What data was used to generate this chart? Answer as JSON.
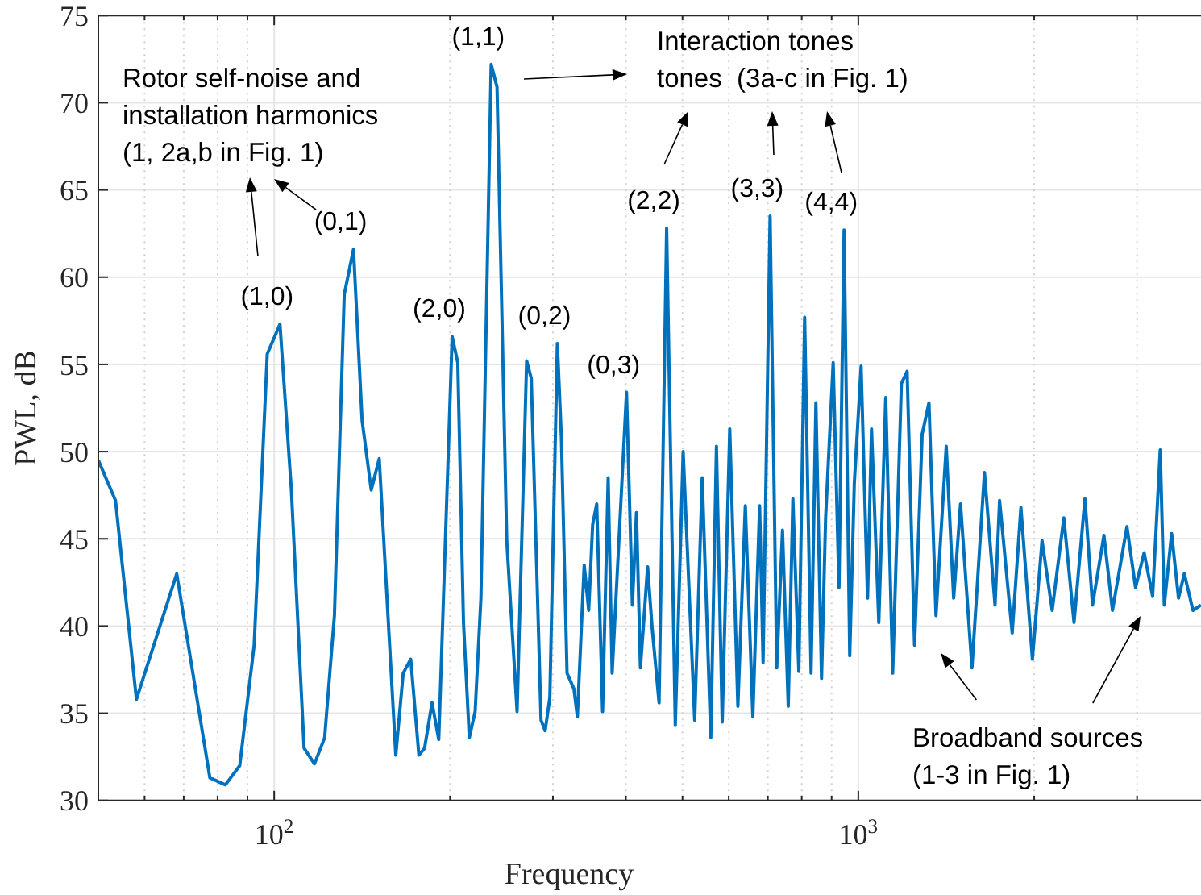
{
  "chart_data": {
    "type": "line",
    "xlabel": "Frequency",
    "ylabel": "PWL, dB",
    "log": "x",
    "grid": true,
    "xlim": [
      50,
      3860
    ],
    "ylim": [
      30,
      75
    ],
    "xticks": [
      {
        "value": 60,
        "label": null
      },
      {
        "value": 70,
        "label": null
      },
      {
        "value": 80,
        "label": null
      },
      {
        "value": 90,
        "label": null
      },
      {
        "value": 100,
        "label": "10$^{2}$"
      },
      {
        "value": 200,
        "label": null
      },
      {
        "value": 300,
        "label": null
      },
      {
        "value": 400,
        "label": null
      },
      {
        "value": 500,
        "label": null
      },
      {
        "value": 600,
        "label": null
      },
      {
        "value": 700,
        "label": null
      },
      {
        "value": 800,
        "label": null
      },
      {
        "value": 900,
        "label": null
      },
      {
        "value": 1000,
        "label": "10$^{3}$"
      },
      {
        "value": 2000,
        "label": null
      },
      {
        "value": 3000,
        "label": null
      }
    ],
    "yticks": [
      30,
      35,
      40,
      45,
      50,
      55,
      60,
      65,
      70,
      75
    ],
    "x": [
      50,
      53.5,
      58.1,
      68.1,
      77.6,
      82.5,
      87.3,
      92.4,
      97.3,
      102.3,
      107,
      112.5,
      117.2,
      122,
      126.8,
      131.8,
      136.7,
      141.4,
      146.6,
      151.3,
      157.2,
      161.5,
      166.3,
      171.3,
      176.9,
      180.9,
      186.3,
      191.3,
      201.7,
      206.2,
      210.9,
      215.8,
      220.8,
      225.9,
      235.2,
      240.7,
      250.1,
      260.5,
      270.5,
      275.5,
      286.3,
      291,
      296.4,
      305.3,
      310.2,
      317.2,
      325.9,
      330.4,
      339.4,
      345.5,
      350.9,
      356.6,
      364.9,
      373,
      378.9,
      401,
      410.4,
      417,
      423.6,
      435.8,
      443.6,
      455.9,
      469.7,
      486,
      501.3,
      524.6,
      540.4,
      559,
      571.6,
      584.8,
      602.4,
      622,
      640.5,
      659.8,
      677.7,
      687,
      706.2,
      725,
      741.6,
      758.6,
      772.6,
      790.9,
      809.3,
      830,
      846,
      865,
      879,
      905.6,
      926.6,
      945.3,
      966.7,
      984.3,
      1011,
      1037,
      1053.4,
      1084,
      1114,
      1145,
      1185,
      1212,
      1248,
      1286,
      1321,
      1358,
      1414,
      1456,
      1496,
      1565,
      1644,
      1714,
      1745,
      1834,
      1898,
      1986,
      2063,
      2147,
      2248,
      2340,
      2443,
      2517,
      2633,
      2723,
      2883,
      2982,
      3085,
      3190,
      3287,
      3340,
      3438,
      3533,
      3614,
      3740,
      3860
    ],
    "series": [
      {
        "color": "#0072bd",
        "values": [
          49.5,
          47.2,
          35.8,
          43.0,
          31.3,
          30.9,
          32.0,
          38.9,
          55.6,
          57.3,
          47.8,
          33.0,
          32.1,
          33.6,
          40.6,
          59.0,
          61.6,
          51.8,
          47.8,
          49.6,
          39.6,
          32.6,
          37.3,
          38.1,
          32.6,
          33.0,
          35.6,
          33.5,
          56.6,
          55.1,
          40.2,
          33.6,
          35.1,
          41.6,
          72.2,
          70.9,
          44.9,
          35.1,
          55.2,
          54.2,
          34.6,
          34.0,
          35.9,
          56.2,
          50.8,
          37.3,
          36.4,
          34.8,
          43.5,
          40.9,
          45.8,
          47.0,
          35.1,
          48.5,
          37.3,
          53.4,
          41.2,
          46.5,
          37.6,
          43.4,
          39.9,
          35.6,
          62.8,
          34.3,
          50.0,
          34.6,
          48.5,
          33.6,
          50.3,
          34.5,
          51.3,
          35.4,
          46.9,
          34.8,
          46.9,
          37.9,
          63.5,
          37.6,
          45.5,
          35.4,
          47.3,
          37.4,
          57.7,
          37.3,
          52.8,
          37.0,
          46.2,
          55.1,
          42.2,
          62.7,
          38.3,
          48.2,
          54.9,
          41.6,
          51.3,
          40.2,
          53.1,
          37.3,
          53.9,
          54.6,
          38.9,
          51.0,
          52.8,
          40.6,
          50.3,
          41.6,
          47.0,
          37.6,
          48.8,
          41.2,
          47.2,
          39.6,
          46.8,
          38.1,
          44.9,
          40.9,
          46.2,
          40.2,
          47.3,
          41.2,
          45.2,
          40.9,
          45.7,
          42.2,
          44.2,
          41.7,
          50.1,
          41.2,
          45.3,
          41.6,
          43.0,
          40.9,
          41.2
        ]
      }
    ],
    "annotations": [
      "Rotor self-noise and\ninstallation harmonics\n(1, 2a,b in Fig. 1)",
      "Interaction tones\ntones  (3a-c in Fig. 1)",
      "Broadband sources\n(1-3 in Fig. 1)",
      {
        "text": "(1,0)",
        "x": 102.3,
        "y": 57.3
      },
      {
        "text": "(0,1)",
        "x": 136.7,
        "y": 61.6
      },
      {
        "text": "(2,0)",
        "x": 201.7,
        "y": 56.6
      },
      {
        "text": "(1,1)",
        "x": 235.2,
        "y": 72.2
      },
      {
        "text": "(0,2)",
        "x": 305.3,
        "y": 56.2
      },
      {
        "text": "(0,3)",
        "x": 401,
        "y": 53.4
      },
      {
        "text": "(2,2)",
        "x": 469.7,
        "y": 62.8
      },
      {
        "text": "(3,3)",
        "x": 706.2,
        "y": 63.5
      },
      {
        "text": "(4,4)",
        "x": 945.3,
        "y": 62.7
      }
    ]
  }
}
